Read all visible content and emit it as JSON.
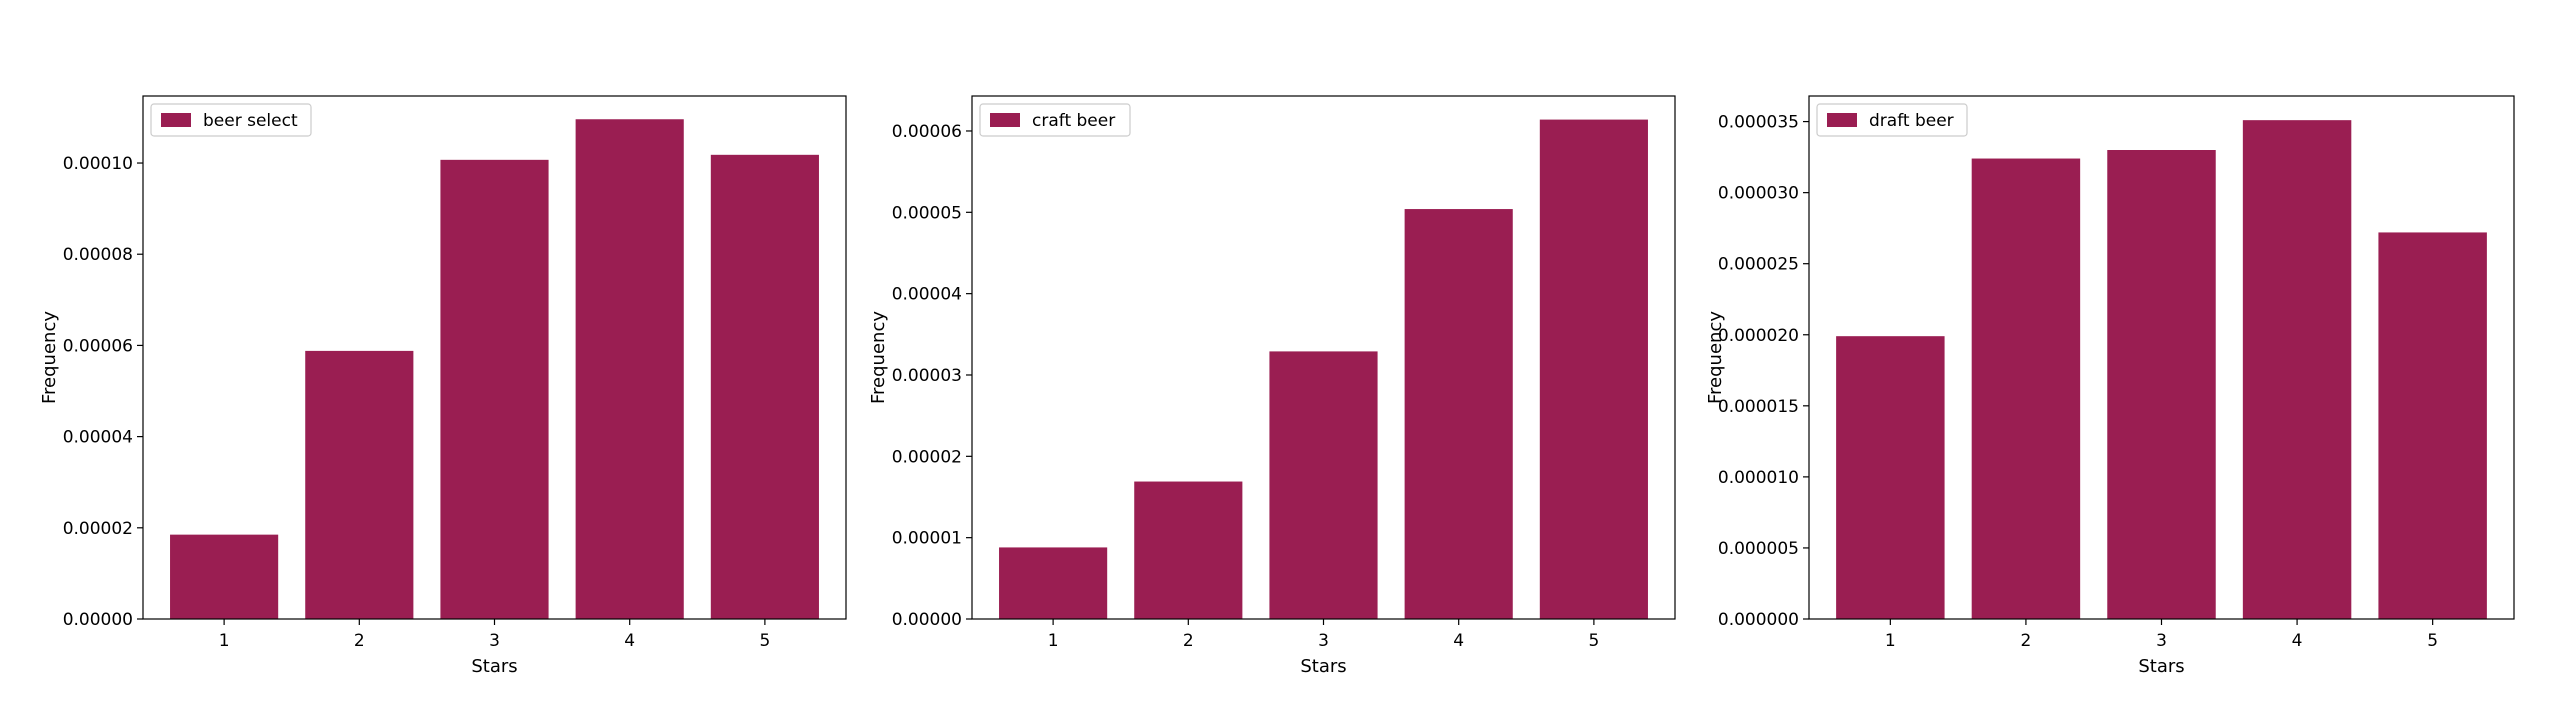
{
  "chart_data": [
    {
      "type": "bar",
      "categories": [
        "1",
        "2",
        "3",
        "4",
        "5"
      ],
      "series": [
        {
          "name": "beer select",
          "values": [
            1.85e-05,
            5.88e-05,
            0.0001007,
            0.0001096,
            0.0001018
          ]
        }
      ],
      "xlabel": "Stars",
      "ylabel": "Frequency",
      "ylim": [
        0,
        0.0001147
      ],
      "yticks": [
        "0.00000",
        "0.00002",
        "0.00004",
        "0.00006",
        "0.00008",
        "0.00010"
      ],
      "ytick_values": [
        0,
        2e-05,
        4e-05,
        6e-05,
        8e-05,
        0.0001
      ],
      "grid": false,
      "legend": "top-left",
      "color": "#9a1e52"
    },
    {
      "type": "bar",
      "categories": [
        "1",
        "2",
        "3",
        "4",
        "5"
      ],
      "series": [
        {
          "name": "craft beer",
          "values": [
            8.8e-06,
            1.69e-05,
            3.29e-05,
            5.04e-05,
            6.14e-05
          ]
        }
      ],
      "xlabel": "Stars",
      "ylabel": "Frequency",
      "ylim": [
        0,
        6.43e-05
      ],
      "yticks": [
        "0.00000",
        "0.00001",
        "0.00002",
        "0.00003",
        "0.00004",
        "0.00005",
        "0.00006"
      ],
      "ytick_values": [
        0,
        1e-05,
        2e-05,
        3e-05,
        4e-05,
        5e-05,
        6e-05
      ],
      "grid": false,
      "legend": "top-left",
      "color": "#9a1e52"
    },
    {
      "type": "bar",
      "categories": [
        "1",
        "2",
        "3",
        "4",
        "5"
      ],
      "series": [
        {
          "name": "draft beer",
          "values": [
            1.99e-05,
            3.24e-05,
            3.3e-05,
            3.51e-05,
            2.72e-05
          ]
        }
      ],
      "xlabel": "Stars",
      "ylabel": "Frequency",
      "ylim": [
        0,
        3.68e-05
      ],
      "yticks": [
        "0.000000",
        "0.000005",
        "0.000010",
        "0.000015",
        "0.000020",
        "0.000025",
        "0.000030",
        "0.000035"
      ],
      "ytick_values": [
        0,
        5e-06,
        1e-05,
        1.5e-05,
        2e-05,
        2.5e-05,
        3e-05,
        3.5e-05
      ],
      "grid": false,
      "legend": "top-left",
      "color": "#9a1e52"
    }
  ]
}
